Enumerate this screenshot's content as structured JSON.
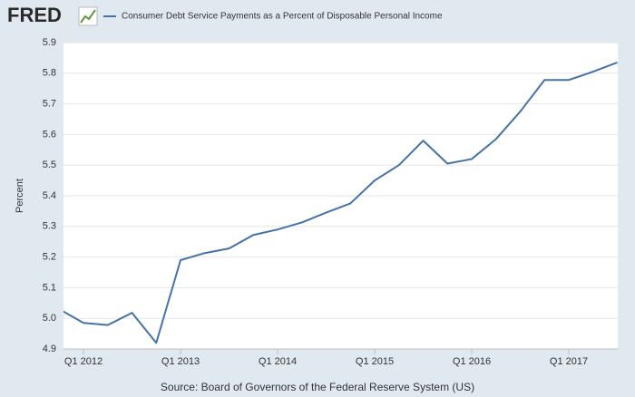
{
  "logo": "FRED",
  "chart_data": {
    "type": "line",
    "y_label": "Percent",
    "source": "Source: Board of Governors of the Federal Reserve System (US)",
    "categories": [
      null,
      "Q1 2012",
      null,
      null,
      null,
      "Q1 2013",
      null,
      null,
      null,
      "Q1 2014",
      null,
      null,
      null,
      "Q1 2015",
      null,
      null,
      null,
      "Q1 2016",
      null,
      null,
      null,
      "Q1 2017",
      null,
      null
    ],
    "series": [
      {
        "name": "Consumer Debt Service Payments as a Percent of Disposable Personal Income",
        "color": "#4572a7",
        "values": [
          5.03,
          4.985,
          4.978,
          5.018,
          4.92,
          5.19,
          5.213,
          5.228,
          5.272,
          5.29,
          5.313,
          5.345,
          5.375,
          5.45,
          5.5,
          5.58,
          5.505,
          5.52,
          5.585,
          5.675,
          5.778,
          5.778,
          5.805,
          5.835
        ]
      }
    ],
    "ylim": [
      4.9,
      5.9
    ],
    "yticks": [
      4.9,
      {
        "value": 5,
        "label": "5.0"
      },
      5.1,
      5.2,
      5.3,
      5.4,
      5.5,
      5.6,
      5.7,
      5.8,
      5.9
    ],
    "grid": true
  }
}
